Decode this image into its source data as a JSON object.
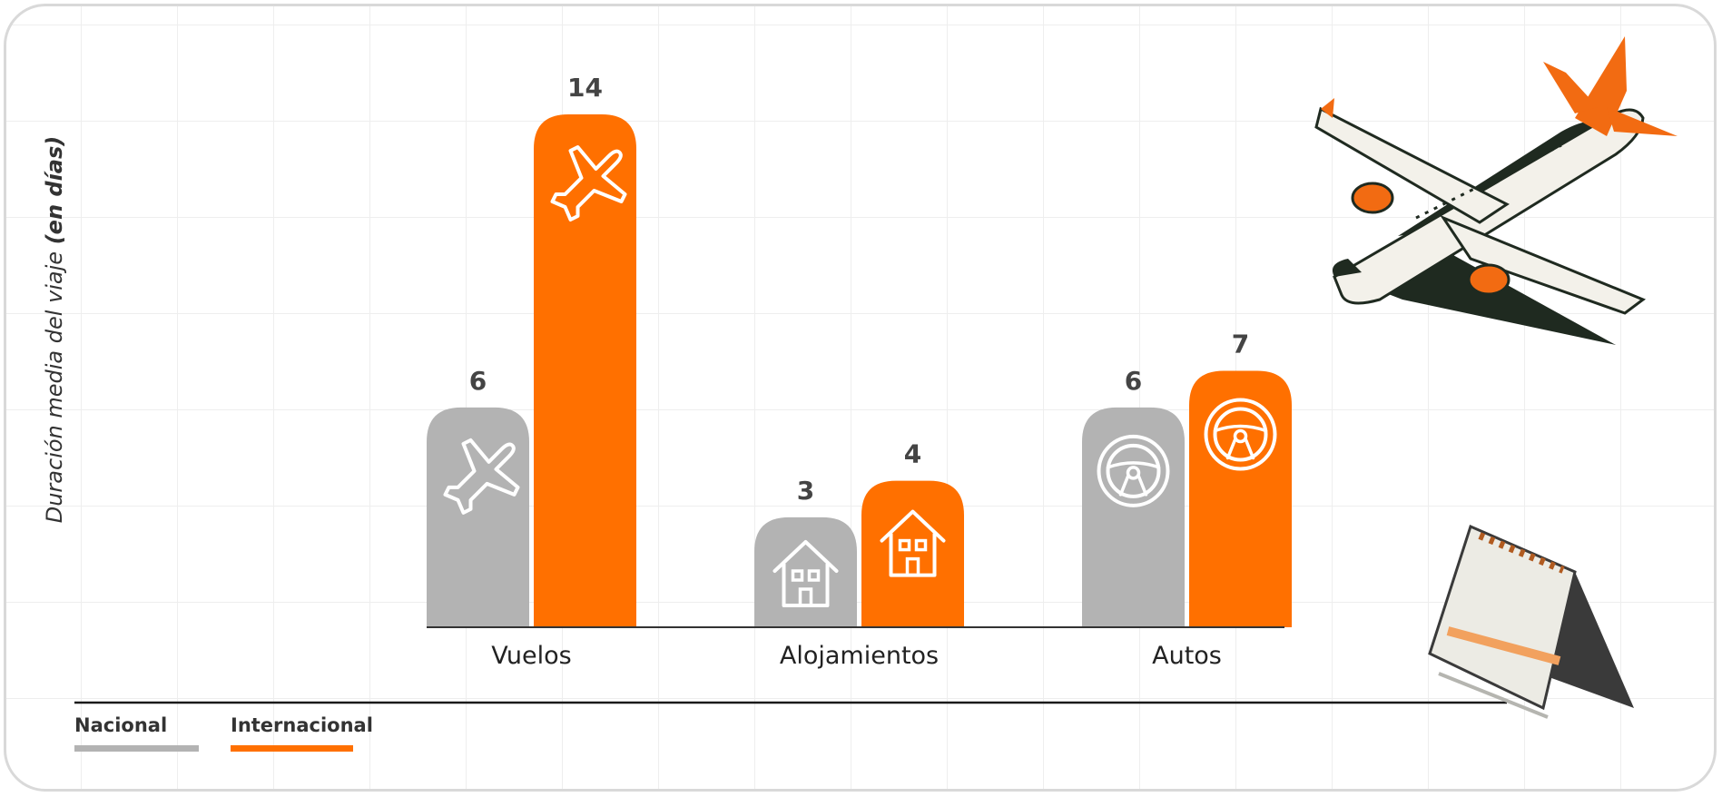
{
  "chart_data": {
    "type": "bar",
    "ylabel": "Duración media del viaje ",
    "ylabel_bold": "(en días)",
    "categories": [
      "Vuelos",
      "Alojamientos",
      "Autos"
    ],
    "category_icons": [
      "airplane-icon",
      "house-icon",
      "steering-wheel-icon"
    ],
    "series": [
      {
        "name": "Nacional",
        "color": "#b3b3b3",
        "values": [
          6,
          3,
          6
        ]
      },
      {
        "name": "Internacional",
        "color": "#ff7000",
        "values": [
          14,
          4,
          7
        ]
      }
    ],
    "legend": "bottom-left",
    "grid": true
  }
}
